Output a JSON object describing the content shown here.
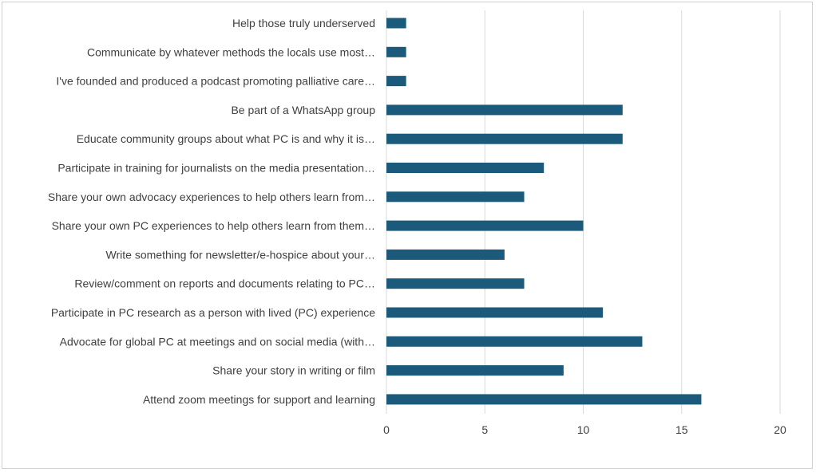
{
  "chart_data": {
    "type": "bar",
    "orientation": "horizontal",
    "categories": [
      "Help those truly underserved",
      "Communicate by whatever methods the locals use most…",
      "I've founded and produced a podcast promoting palliative care…",
      "Be part of a WhatsApp group",
      "Educate community groups about what PC is and why it is…",
      "Participate in training for journalists on the media presentation…",
      "Share your own advocacy experiences to help others learn from…",
      "Share your own PC experiences to help others learn from them…",
      "Write something for newsletter/e-hospice about your…",
      "Review/comment on reports and documents relating to PC…",
      "Participate in PC research as a person with lived (PC) experience",
      "Advocate for global PC at meetings and on social media (with…",
      "Share your story in writing or film",
      "Attend zoom meetings for support and learning"
    ],
    "values": [
      1,
      1,
      1,
      12,
      12,
      8,
      7,
      10,
      6,
      7,
      11,
      13,
      9,
      16
    ],
    "xlim": [
      0,
      20
    ],
    "xticks": [
      0,
      5,
      10,
      15,
      20
    ],
    "xtick_labels": [
      "0",
      "5",
      "10",
      "15",
      "20"
    ],
    "grid": "vertical gridlines",
    "legend": "none",
    "title": "",
    "xlabel": "",
    "ylabel": "",
    "colors": {
      "bar": "#1b5a7a",
      "grid": "#d9d9d9",
      "text": "#404040"
    }
  }
}
